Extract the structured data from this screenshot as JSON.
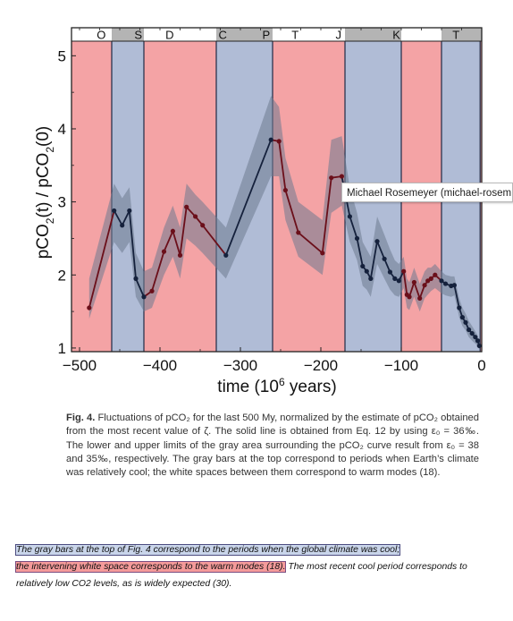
{
  "chart_data": {
    "type": "line",
    "xlabel": "time (10",
    "xlabel_sup": "6",
    "xlabel_end": " years)",
    "ylabel": "pCO",
    "ylabel_sub": "2",
    "ylabel_mid": "(t) / pCO",
    "ylabel_sub2": "2",
    "ylabel_end": "(0)",
    "xlim": [
      -510,
      0
    ],
    "ylim": [
      0.95,
      5.2
    ],
    "x_ticks": [
      -500,
      -400,
      -300,
      -200,
      -100,
      0
    ],
    "x_tick_labels": [
      "−500",
      "−400",
      "−300",
      "−200",
      "−100",
      "0"
    ],
    "y_ticks": [
      1,
      2,
      3,
      4,
      5
    ],
    "y_tick_labels": [
      "1",
      "2",
      "3",
      "4",
      "5"
    ],
    "period_labels": [
      {
        "label": "O",
        "x": -473
      },
      {
        "label": "S",
        "x": -427
      },
      {
        "label": "D",
        "x": -388
      },
      {
        "label": "C",
        "x": -322
      },
      {
        "label": "P",
        "x": -268
      },
      {
        "label": "T",
        "x": -232
      },
      {
        "label": "J",
        "x": -178
      },
      {
        "label": "K",
        "x": -106
      },
      {
        "label": "T",
        "x": -32
      }
    ],
    "cool_bars": [
      [
        -460,
        -420
      ],
      [
        -330,
        -260
      ],
      [
        -170,
        -100
      ],
      [
        -50,
        0
      ]
    ],
    "shaded_bands": [
      {
        "mode": "warm",
        "from": -510,
        "to": -460,
        "color": "#f4a3a5"
      },
      {
        "mode": "cool",
        "from": -460,
        "to": -420,
        "color": "#b0bcd6"
      },
      {
        "mode": "warm",
        "from": -420,
        "to": -330,
        "color": "#f4a3a5"
      },
      {
        "mode": "cool",
        "from": -330,
        "to": -260,
        "color": "#b0bcd6"
      },
      {
        "mode": "warm",
        "from": -260,
        "to": -170,
        "color": "#f4a3a5"
      },
      {
        "mode": "cool",
        "from": -170,
        "to": -100,
        "color": "#b0bcd6"
      },
      {
        "mode": "warm",
        "from": -100,
        "to": -50,
        "color": "#f4a3a5"
      },
      {
        "mode": "cool",
        "from": -50,
        "to": -2,
        "color": "#b0bcd6"
      },
      {
        "mode": "warm",
        "from": -2,
        "to": 0,
        "color": "#f4a3a5"
      }
    ],
    "series": [
      {
        "x": [
          -488,
          -457,
          -447,
          -438,
          -430,
          -420,
          -410,
          -395,
          -384,
          -375,
          -367,
          -356,
          -347,
          -318,
          -262,
          -252,
          -244,
          -228,
          -198,
          -187,
          -174,
          -164,
          -155,
          -148,
          -143,
          -138,
          -130,
          -121,
          -114,
          -108,
          -103,
          -97,
          -93,
          -90,
          -84,
          -77,
          -71,
          -67,
          -63,
          -58,
          -50,
          -45,
          -38,
          -34,
          -28,
          -24,
          -20,
          -16,
          -12,
          -8,
          -5,
          -3
        ],
        "y": [
          1.55,
          2.88,
          2.68,
          2.88,
          1.95,
          1.7,
          1.78,
          2.32,
          2.6,
          2.27,
          2.93,
          2.8,
          2.68,
          2.27,
          3.85,
          3.83,
          3.16,
          2.58,
          2.3,
          3.33,
          3.35,
          2.8,
          2.5,
          2.12,
          2.05,
          1.95,
          2.46,
          2.22,
          2.04,
          1.95,
          1.92,
          2.05,
          1.73,
          1.7,
          1.9,
          1.68,
          1.86,
          1.92,
          1.95,
          2.0,
          1.92,
          1.88,
          1.85,
          1.86,
          1.55,
          1.42,
          1.35,
          1.25,
          1.2,
          1.15,
          1.1,
          1.03
        ],
        "upper": [
          1.95,
          3.25,
          3.05,
          3.2,
          2.3,
          2.05,
          2.1,
          2.65,
          2.95,
          2.65,
          3.25,
          3.1,
          3.0,
          2.65,
          4.45,
          4.3,
          3.6,
          3.0,
          2.75,
          3.85,
          3.9,
          3.2,
          2.85,
          2.45,
          2.35,
          2.25,
          2.8,
          2.55,
          2.35,
          2.2,
          2.15,
          2.25,
          1.95,
          1.9,
          2.1,
          1.88,
          2.05,
          2.1,
          2.1,
          2.15,
          2.05,
          2.0,
          1.98,
          1.98,
          1.68,
          1.55,
          1.47,
          1.37,
          1.3,
          1.23,
          1.17,
          1.08
        ],
        "lower": [
          1.4,
          2.45,
          2.3,
          2.45,
          1.7,
          1.5,
          1.55,
          2.0,
          2.25,
          1.95,
          2.5,
          2.4,
          2.3,
          1.95,
          3.35,
          3.35,
          2.75,
          2.25,
          2.0,
          2.85,
          2.95,
          2.45,
          2.2,
          1.85,
          1.8,
          1.7,
          2.15,
          1.95,
          1.8,
          1.72,
          1.7,
          1.82,
          1.55,
          1.52,
          1.7,
          1.5,
          1.68,
          1.73,
          1.78,
          1.82,
          1.75,
          1.72,
          1.7,
          1.72,
          1.42,
          1.3,
          1.24,
          1.15,
          1.1,
          1.06,
          1.03,
          0.98
        ]
      }
    ],
    "colors": {
      "warm": "#f4a3a5",
      "cool": "#b0bcd6",
      "uncertainty": "#6e7a90",
      "line_warm": "#6b0f1a",
      "line_cool": "#15213c",
      "top_bar": "#b4b4b4"
    },
    "grid": false
  },
  "tooltip": {
    "text": "Michael Rosemeyer (michael-rosem"
  },
  "caption": {
    "label": "Fig. 4.",
    "text": " Fluctuations of pCO₂ for the last 500 My, normalized by the estimate of pCO₂ obtained from the most recent value of ζ. The solid line is obtained from Eq. 12 by using ε₀ = 36‰. The lower and upper limits of the gray area surrounding the pCO₂ curve result from ε₀ = 38 and 35‰, respectively. The gray bars at the top correspond to periods when Earth’s climate was relatively cool; the white spaces between them correspond to warm modes (18)."
  },
  "comment": {
    "part1": "The gray bars at the top of Fig. 4 correspond to the periods when the global climate was cool;",
    "part2": "the intervening white space corresponds to the warm modes (18).",
    "part3": " The most recent cool period corresponds to relatively low CO2 levels, as is widely expected (30)."
  }
}
